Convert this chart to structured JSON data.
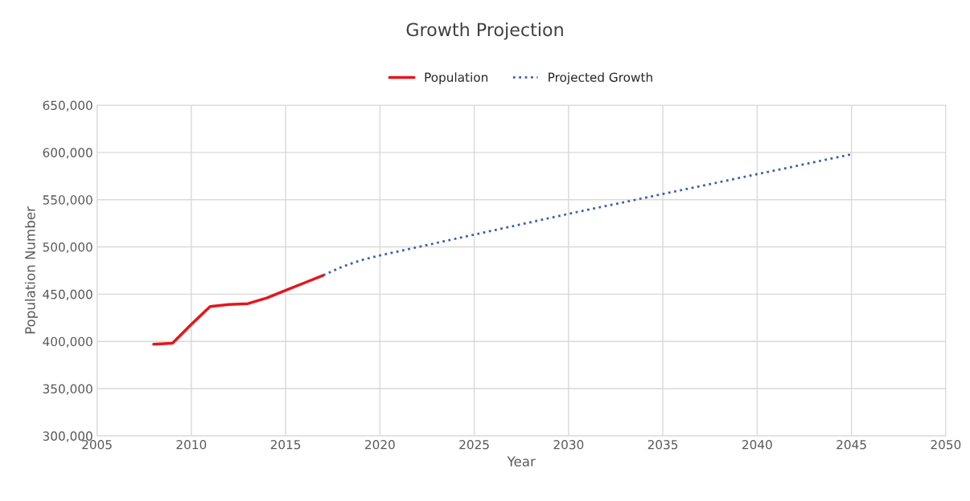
{
  "chart_data": {
    "type": "line",
    "title": "Growth Projection",
    "xlabel": "Year",
    "ylabel": "Population Number",
    "series": [
      {
        "name": "Population",
        "color": "#e8141b",
        "line_style": "solid",
        "x": [
          2008,
          2009,
          2010,
          2011,
          2012,
          2013,
          2014,
          2015,
          2016,
          2017
        ],
        "values": [
          397000,
          398000,
          418000,
          437000,
          439000,
          440000,
          446000,
          454000,
          462000,
          470000
        ]
      },
      {
        "name": "Projected Growth",
        "color": "#3e5fa8",
        "line_style": "dotted",
        "x": [
          2017,
          2018,
          2019,
          2020,
          2025,
          2030,
          2035,
          2040,
          2045
        ],
        "values": [
          470000,
          479000,
          486000,
          491000,
          513000,
          535000,
          556000,
          577000,
          598000
        ]
      }
    ],
    "xlim": [
      2005,
      2050
    ],
    "xticks": [
      2005,
      2010,
      2015,
      2020,
      2025,
      2030,
      2035,
      2040,
      2045,
      2050
    ],
    "ylim": [
      300000,
      650000
    ],
    "yticks": [
      {
        "value": 300000,
        "label": "300,000"
      },
      {
        "value": 350000,
        "label": "350,000"
      },
      {
        "value": 400000,
        "label": "400,000"
      },
      {
        "value": 450000,
        "label": "450,000"
      },
      {
        "value": 500000,
        "label": "500,000"
      },
      {
        "value": 550000,
        "label": "550,000"
      },
      {
        "value": 600000,
        "label": "600,000"
      },
      {
        "value": 650000,
        "label": "650,000"
      }
    ],
    "grid": true,
    "legend": "top",
    "marker": "none"
  }
}
